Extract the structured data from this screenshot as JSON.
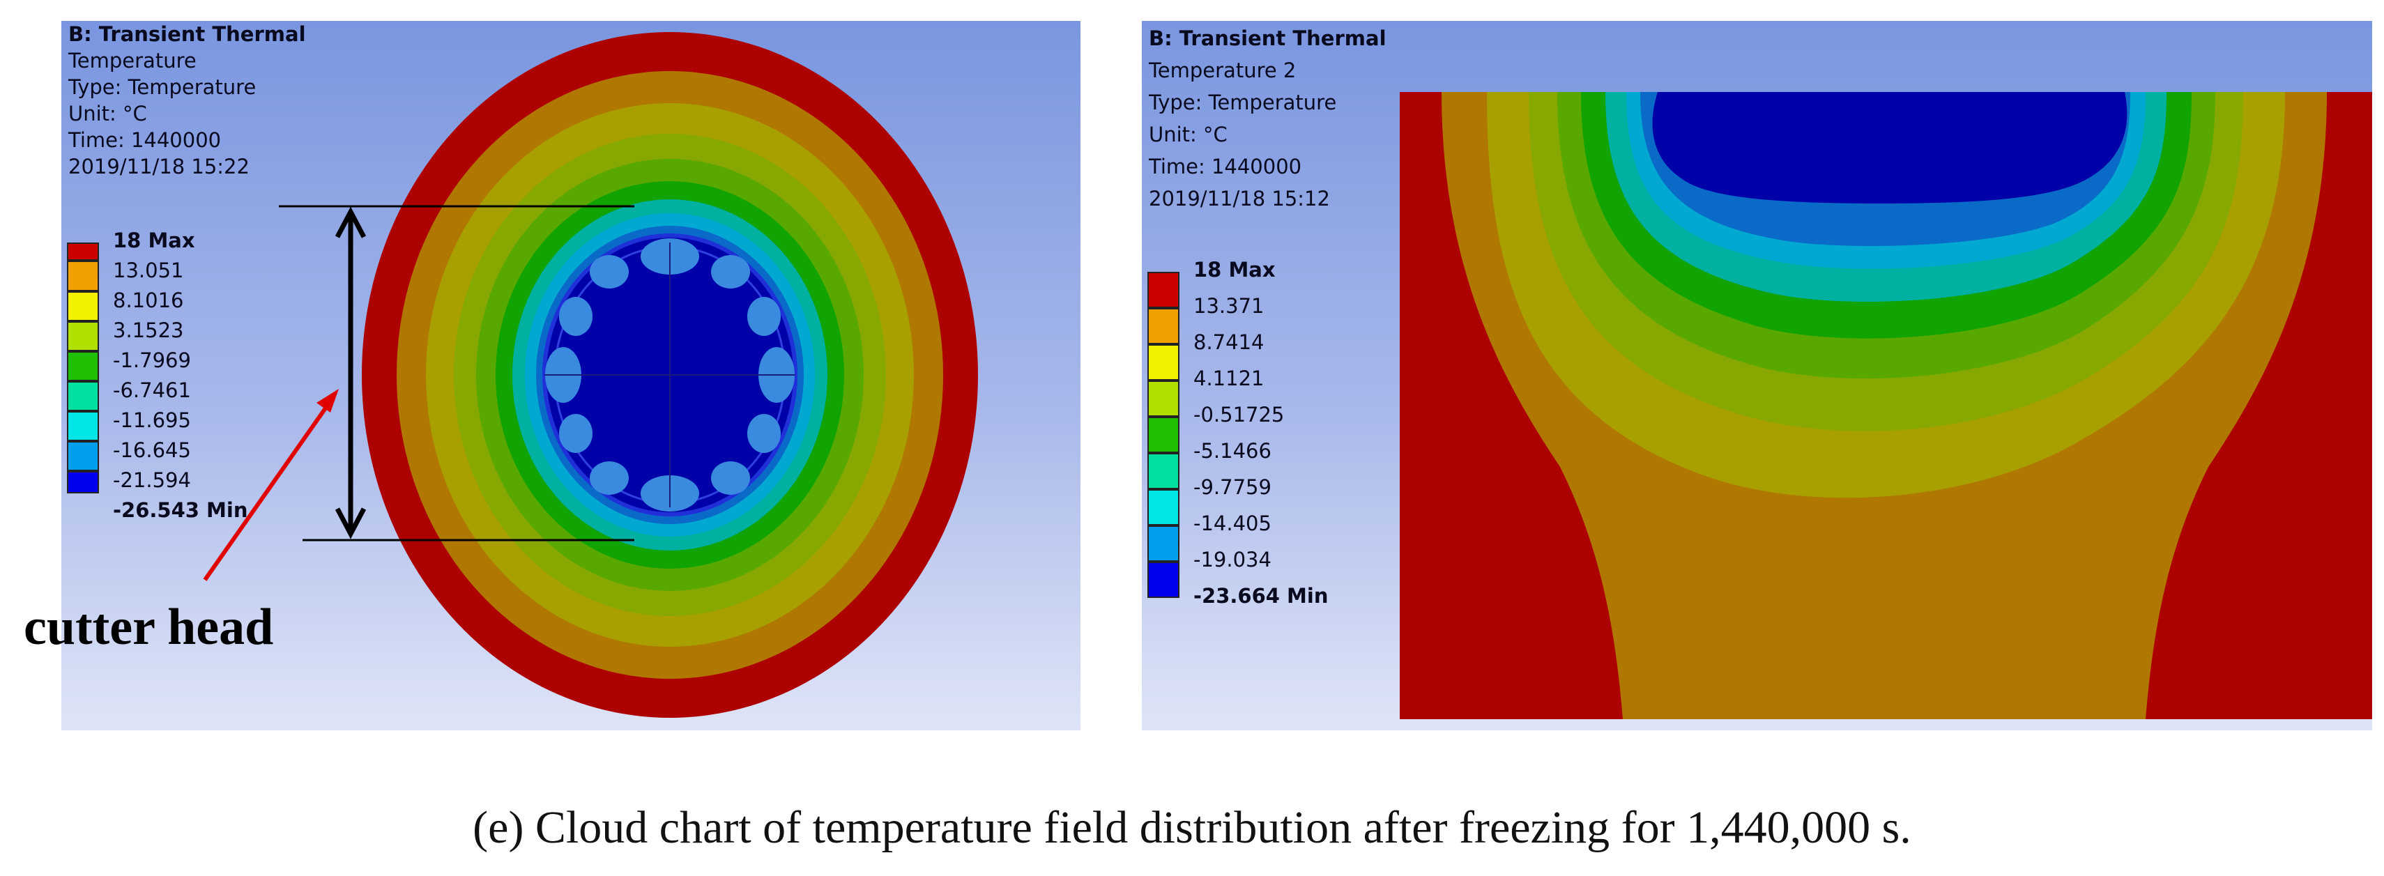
{
  "left_panel": {
    "title": "B: Transient Thermal",
    "lines": [
      "Temperature",
      "Type: Temperature",
      "Unit: °C",
      "Time: 1440000",
      "2019/11/18 15:22"
    ],
    "legend": [
      "18 Max",
      "13.051",
      "8.1016",
      "3.1523",
      "-1.7969",
      "-6.7461",
      "-11.695",
      "-16.645",
      "-21.594",
      "-26.543 Min"
    ],
    "annotation": "cutter head"
  },
  "right_panel": {
    "title": "B: Transient Thermal",
    "lines": [
      "Temperature 2",
      "Type: Temperature",
      "Unit: °C",
      "Time: 1440000",
      "2019/11/18 15:12"
    ],
    "legend": [
      "18 Max",
      "13.371",
      "8.7414",
      "4.1121",
      "-0.51725",
      "-5.1466",
      "-9.7759",
      "-14.405",
      "-19.034",
      "-23.664 Min"
    ]
  },
  "colors": {
    "scale": [
      "#cc0000",
      "#f0a000",
      "#f2f200",
      "#b0e000",
      "#20c000",
      "#00e0a0",
      "#00e6e6",
      "#00a0ee",
      "#0000ee"
    ],
    "contours": [
      "#ad0000",
      "#b07800",
      "#a8a000",
      "#86a800",
      "#58a800",
      "#11a300",
      "#00b0a0",
      "#00a8d2",
      "#0a6ac8",
      "#0000a8"
    ]
  },
  "caption": "(e) Cloud chart of temperature field distribution after freezing for 1,440,000 s."
}
